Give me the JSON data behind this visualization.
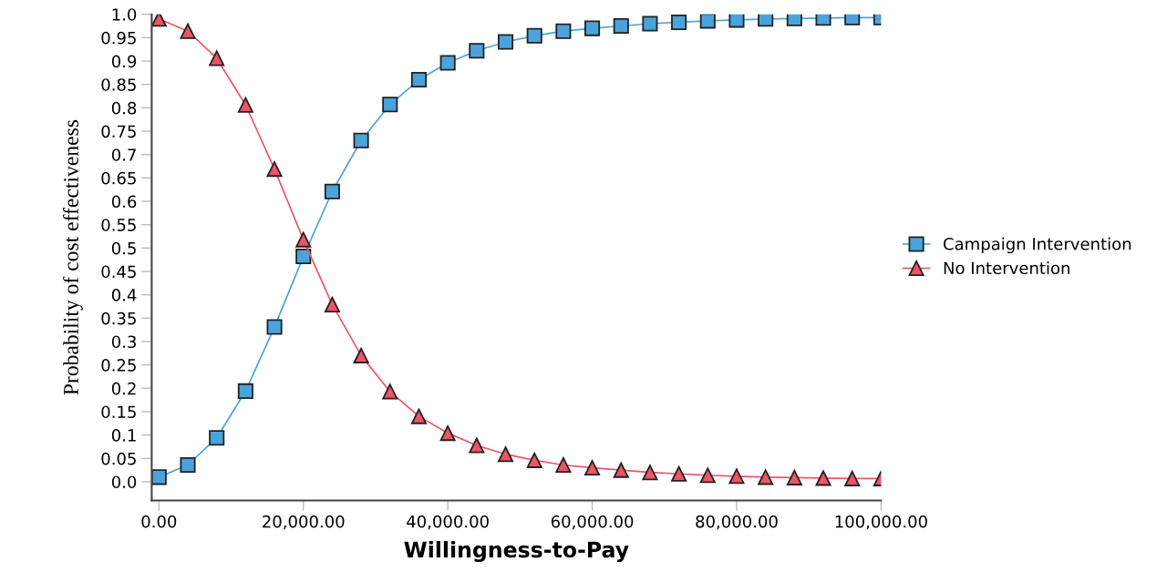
{
  "chart_data": {
    "type": "line",
    "xlabel": "Willingness-to-Pay",
    "ylabel": "Probability of cost effectiveness",
    "x": [
      0,
      4000,
      8000,
      12000,
      16000,
      20000,
      24000,
      28000,
      32000,
      36000,
      40000,
      44000,
      48000,
      52000,
      56000,
      60000,
      64000,
      68000,
      72000,
      76000,
      80000,
      84000,
      88000,
      92000,
      96000,
      100000
    ],
    "series": [
      {
        "name": "Campaign Intervention",
        "color": "#4aa3db",
        "marker": "square",
        "values": [
          0.01,
          0.036,
          0.094,
          0.194,
          0.331,
          0.482,
          0.621,
          0.73,
          0.807,
          0.86,
          0.896,
          0.922,
          0.941,
          0.954,
          0.964,
          0.97,
          0.975,
          0.98,
          0.983,
          0.986,
          0.988,
          0.99,
          0.991,
          0.992,
          0.993,
          0.993
        ]
      },
      {
        "name": "No Intervention",
        "color": "#ec5468",
        "marker": "triangle",
        "values": [
          0.99,
          0.964,
          0.906,
          0.806,
          0.669,
          0.518,
          0.379,
          0.27,
          0.193,
          0.14,
          0.104,
          0.078,
          0.059,
          0.046,
          0.036,
          0.03,
          0.025,
          0.02,
          0.017,
          0.014,
          0.012,
          0.01,
          0.009,
          0.008,
          0.007,
          0.007
        ]
      }
    ],
    "xlim": [
      -1000,
      100000
    ],
    "ylim": [
      -0.04,
      1.0
    ],
    "xticks": [
      {
        "value": 0,
        "label": "0.00"
      },
      {
        "value": 20000,
        "label": "20,000.00"
      },
      {
        "value": 40000,
        "label": "40,000.00"
      },
      {
        "value": 60000,
        "label": "60,000.00"
      },
      {
        "value": 80000,
        "label": "80,000.00"
      },
      {
        "value": 100000,
        "label": "100,000.00"
      }
    ],
    "yticks": [
      {
        "value": 0,
        "label": "0.0"
      },
      0.05,
      0.1,
      0.15,
      0.2,
      0.25,
      0.3,
      0.35,
      0.4,
      0.45,
      0.5,
      0.55,
      0.6,
      0.65,
      0.7,
      0.75,
      0.8,
      0.85,
      0.9,
      0.95,
      {
        "value": 1.0,
        "label": "1.0"
      }
    ],
    "grid": false,
    "legend": "right",
    "line_style": "solid"
  }
}
